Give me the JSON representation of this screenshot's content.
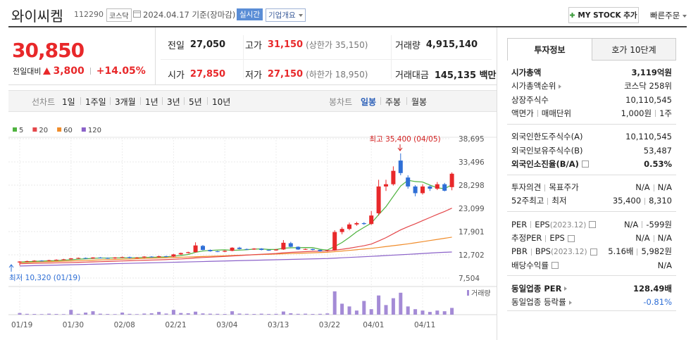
{
  "header": {
    "name": "와이씨켐",
    "code": "112290",
    "market": "코스닥",
    "date": "2024.04.17 기준(장마감)",
    "realtime": "실시간",
    "overview": "기업개요",
    "mystock": "MY STOCK 추가",
    "quick_order": "빠른주문"
  },
  "price": {
    "current": "30,850",
    "change_label": "전일대비",
    "change": "3,800",
    "change_pct": "+14.05%"
  },
  "quote": [
    {
      "label": "전일",
      "value": "27,050"
    },
    {
      "label": "고가",
      "value": "31,150",
      "note": "(상한가 35,150)"
    },
    {
      "label": "거래량",
      "value": "4,915,140"
    },
    {
      "label": "시가",
      "value": "27,850"
    },
    {
      "label": "저가",
      "value": "27,150",
      "note": "(하한가 18,950)"
    },
    {
      "label": "거래대금",
      "value": "145,135 백만"
    }
  ],
  "line_tabs": {
    "label": "선차트",
    "items": [
      "1일",
      "1주일",
      "3개월",
      "1년",
      "3년",
      "5년",
      "10년"
    ]
  },
  "candle_tabs": {
    "label": "봉차트",
    "items": [
      "일봉",
      "주봉",
      "월봉"
    ]
  },
  "chart_data": {
    "type": "candlestick",
    "categories": [
      "01/19",
      null,
      null,
      null,
      null,
      null,
      null,
      "01/30",
      null,
      null,
      null,
      null,
      null,
      null,
      "02/08",
      null,
      null,
      null,
      null,
      null,
      null,
      "02/21",
      null,
      null,
      null,
      null,
      null,
      null,
      "03/04",
      null,
      null,
      null,
      null,
      null,
      null,
      "03/13",
      null,
      null,
      null,
      null,
      null,
      null,
      "03/22",
      null,
      null,
      null,
      null,
      null,
      "04/01",
      null,
      null,
      null,
      null,
      null,
      null,
      "04/11",
      null,
      null,
      null,
      null
    ],
    "open": [
      11000,
      11200,
      11300,
      11400,
      11350,
      11500,
      11600,
      11700,
      11900,
      12000,
      11900,
      12100,
      12000,
      11900,
      12100,
      12200,
      12000,
      12100,
      12300,
      12200,
      12400,
      12300,
      12800,
      13100,
      13300,
      14700,
      13800,
      13500,
      13400,
      13600,
      14300,
      14000,
      13900,
      14100,
      13800,
      13700,
      13900,
      15300,
      14500,
      13900,
      14000,
      13800,
      13500,
      13700,
      17800,
      18500,
      19500,
      19800,
      19600,
      22000,
      28000,
      28500,
      33800,
      30000,
      28000,
      26500,
      28000,
      27500,
      28500,
      27850
    ],
    "high": [
      11300,
      11400,
      11500,
      11500,
      11600,
      11700,
      11800,
      12000,
      12100,
      12100,
      12200,
      12200,
      12100,
      12200,
      12300,
      12300,
      12200,
      12400,
      12400,
      12500,
      12500,
      12900,
      13200,
      13400,
      15500,
      14900,
      13900,
      13600,
      13700,
      14400,
      14500,
      14100,
      14200,
      14200,
      13900,
      14000,
      16000,
      15600,
      14600,
      14100,
      14100,
      13900,
      13800,
      18200,
      18900,
      19900,
      20100,
      20000,
      22500,
      29500,
      29500,
      32500,
      35400,
      30500,
      28300,
      28500,
      28300,
      29000,
      28800,
      31150
    ],
    "low": [
      10320,
      11100,
      11200,
      11250,
      11250,
      11400,
      11500,
      11600,
      11800,
      11800,
      11800,
      11900,
      11800,
      11800,
      12000,
      11900,
      11900,
      12000,
      12100,
      12100,
      12200,
      12200,
      12700,
      13000,
      13200,
      13700,
      13400,
      13300,
      13300,
      13500,
      13900,
      13800,
      13800,
      13700,
      13600,
      13600,
      13800,
      14400,
      13800,
      13800,
      13700,
      13400,
      13400,
      13600,
      17300,
      18200,
      19200,
      19400,
      19400,
      21500,
      27000,
      28200,
      30500,
      27500,
      25800,
      26200,
      27000,
      27200,
      26900,
      27150
    ],
    "close": [
      11200,
      11300,
      11400,
      11350,
      11500,
      11600,
      11700,
      11900,
      12000,
      11900,
      12100,
      12000,
      11900,
      12100,
      12200,
      12000,
      12100,
      12300,
      12200,
      12400,
      12300,
      12800,
      13100,
      13300,
      14800,
      13800,
      13500,
      13400,
      13600,
      14300,
      14000,
      13900,
      14100,
      13800,
      13700,
      13900,
      15400,
      14500,
      13900,
      14000,
      13800,
      13500,
      13700,
      17800,
      18500,
      19500,
      19800,
      19600,
      21500,
      28000,
      28500,
      31500,
      31000,
      28000,
      26500,
      28000,
      27500,
      28500,
      27050,
      30850
    ],
    "series": [
      {
        "name": "5",
        "color": "#4fb33f",
        "values": [
          11100,
          11150,
          11250,
          11300,
          11350,
          11430,
          11510,
          11610,
          11730,
          11820,
          11920,
          11980,
          11980,
          12000,
          12040,
          12060,
          12060,
          12140,
          12160,
          12200,
          12260,
          12400,
          12560,
          12780,
          13260,
          13560,
          13700,
          13760,
          13820,
          13720,
          13760,
          13840,
          13980,
          14020,
          13900,
          13900,
          14180,
          14280,
          14300,
          14340,
          14320,
          13940,
          13780,
          14560,
          15460,
          16600,
          17860,
          18840,
          19780,
          21680,
          23480,
          25800,
          28100,
          29400,
          29100,
          29000,
          28300,
          27700,
          27510,
          28370
        ]
      },
      {
        "name": "20",
        "color": "#e4474a",
        "values": [
          10700,
          10740,
          10780,
          10820,
          10860,
          10900,
          10940,
          10980,
          11030,
          11080,
          11130,
          11180,
          11230,
          11280,
          11330,
          11380,
          11430,
          11480,
          11530,
          11580,
          11640,
          11710,
          11790,
          11870,
          12010,
          12100,
          12180,
          12260,
          12340,
          12450,
          12550,
          12640,
          12750,
          12830,
          12910,
          13000,
          13150,
          13250,
          13330,
          13410,
          13490,
          13530,
          13560,
          13750,
          13940,
          14180,
          14460,
          14740,
          15120,
          15800,
          16540,
          17420,
          18280,
          19000,
          19650,
          20350,
          21050,
          21750,
          22400,
          23150
        ]
      },
      {
        "name": "60",
        "color": "#f08c2a",
        "values": [
          10960,
          11010,
          11060,
          11120,
          11170,
          11230,
          11280,
          11340,
          11390,
          11450,
          11500,
          11560,
          11610,
          11670,
          11720,
          11780,
          11830,
          11890,
          11940,
          12000,
          12050,
          12110,
          12160,
          12220,
          12270,
          12330,
          12380,
          12440,
          12490,
          12550,
          12600,
          12660,
          12710,
          12770,
          12820,
          12880,
          12930,
          12990,
          13040,
          13100,
          13150,
          13210,
          13260,
          13400,
          13550,
          13700,
          13850,
          14000,
          14150,
          14350,
          14550,
          14750,
          14950,
          15150,
          15400,
          15650,
          15900,
          16150,
          16400,
          16650
        ]
      },
      {
        "name": "120",
        "color": "#8b62c9",
        "values": [
          10200,
          10240,
          10280,
          10320,
          10360,
          10400,
          10440,
          10480,
          10520,
          10560,
          10600,
          10640,
          10680,
          10720,
          10760,
          10800,
          10840,
          10880,
          10920,
          10960,
          11000,
          11040,
          11080,
          11120,
          11160,
          11200,
          11240,
          11280,
          11320,
          11360,
          11400,
          11440,
          11480,
          11520,
          11560,
          11600,
          11640,
          11680,
          11720,
          11760,
          11800,
          11840,
          11880,
          11960,
          12040,
          12120,
          12200,
          12280,
          12360,
          12450,
          12540,
          12630,
          12720,
          12810,
          12900,
          13000,
          13100,
          13200,
          13270,
          13330
        ]
      }
    ],
    "up_color": "#e8282a",
    "down_color": "#2f6fd6",
    "volume": {
      "name": "거래량",
      "color": "#a48bd6",
      "ylim": [
        0,
        19000000
      ],
      "values": [
        1200000,
        600000,
        500000,
        400000,
        700000,
        500000,
        400000,
        3500000,
        600000,
        1500000,
        2500000,
        700000,
        500000,
        400000,
        1500000,
        600000,
        400000,
        800000,
        1000000,
        2000000,
        800000,
        3500000,
        1200000,
        1000000,
        2200000,
        900000,
        700000,
        600000,
        500000,
        2500000,
        800000,
        600000,
        500000,
        700000,
        500000,
        600000,
        2300000,
        1000000,
        600000,
        700000,
        500000,
        600000,
        900000,
        17000000,
        8000000,
        6000000,
        3000000,
        10000000,
        4000000,
        14000000,
        7000000,
        12000000,
        16000000,
        6000000,
        4000000,
        3000000,
        2000000,
        3000000,
        2500000,
        4915140
      ]
    },
    "ylim": [
      7504,
      38695
    ],
    "yticks": [
      {
        "value": 7504,
        "label": "7,504"
      },
      {
        "value": 12702,
        "label": "12,702"
      },
      {
        "value": 17901,
        "label": "17,901"
      },
      {
        "value": 23099,
        "label": "23,099"
      },
      {
        "value": 28298,
        "label": "28,298"
      },
      {
        "value": 33496,
        "label": "33,496"
      },
      {
        "value": 38695,
        "label": "38,695"
      }
    ],
    "grid": true,
    "annotations": {
      "high": "최고 35,400 (04/05)",
      "low": "최저 10,320 (01/19)"
    }
  },
  "info": {
    "tabs": [
      "투자정보",
      "호가 10단계"
    ],
    "groups": [
      [
        {
          "label": "시가총액",
          "value": "3,119억원",
          "strong": true
        },
        {
          "label": "시가총액순위",
          "arrow": true,
          "value": "코스닥 258위"
        },
        {
          "label": "상장주식수",
          "value": "10,110,545"
        },
        {
          "label": "액면가",
          "label2": "매매단위",
          "value": "1,000원",
          "value2": "1주"
        }
      ],
      [
        {
          "label": "외국인한도주식수(A)",
          "value": "10,110,545"
        },
        {
          "label": "외국인보유주식수(B)",
          "value": "53,487"
        },
        {
          "label": "외국인소진율(B/A)",
          "help": true,
          "value": "0.53%",
          "strong": true
        }
      ],
      [
        {
          "label": "투자의견",
          "label2": "목표주가",
          "value": "N/A",
          "value2": "N/A"
        },
        {
          "label": "52주최고",
          "label2": "최저",
          "value": "35,400",
          "value2": "8,310"
        }
      ],
      [
        {
          "label": "PER",
          "label2": "EPS",
          "note": "(2023.12)",
          "help": true,
          "value": "N/A",
          "value2": "-599원"
        },
        {
          "label": "추정PER",
          "label2": "EPS",
          "help": true,
          "value": "N/A",
          "value2": "N/A"
        },
        {
          "label": "PBR",
          "label2": "BPS",
          "note": "(2023.12)",
          "help": true,
          "value": "5.16배",
          "value2": "5,982원"
        },
        {
          "label": "배당수익률",
          "help": true,
          "value": "N/A"
        }
      ],
      [
        {
          "label": "동일업종 PER",
          "arrow": true,
          "value": "128.49배",
          "strong": true
        },
        {
          "label": "동일업종 등락률",
          "arrow": true,
          "value": "-0.81%",
          "color": "#2f6fd6"
        }
      ]
    ]
  }
}
